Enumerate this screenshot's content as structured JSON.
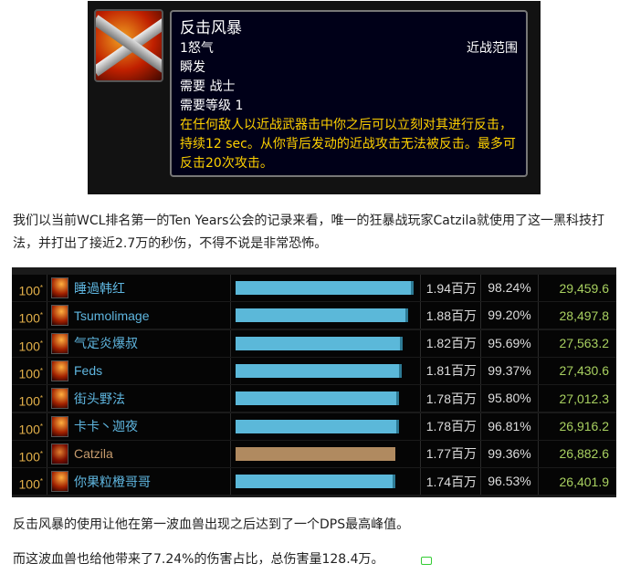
{
  "tooltip": {
    "name": "反击风暴",
    "cost": "1怒气",
    "range": "近战范围",
    "cast": "瞬发",
    "requires_class": "需要 战士",
    "requires_level": "需要等级 1",
    "description": "在任何敌人以近战武器击中你之后可以立刻对其进行反击，持续12 sec。从你背后发动的近战攻击无法被反击。最多可反击20次攻击。",
    "icon": "crossed-swords-icon"
  },
  "paragraph1": "我们以当前WCL排名第一的Ten Years公会的记录来看，唯一的狂暴战玩家Catzila就使用了这一黑科技打法，并打出了接近2.7万的秒伤，不得不说是非常恐怖。",
  "table": {
    "rows": [
      {
        "rank": "100",
        "name": "睡過韩红",
        "amount": "1.94百万",
        "pct": "98.24%",
        "dps": "29,459.6",
        "fill": 1.94,
        "class": "mage"
      },
      {
        "rank": "100",
        "name": "Tsumolimage",
        "amount": "1.88百万",
        "pct": "99.20%",
        "dps": "28,497.8",
        "fill": 1.88,
        "class": "mage"
      },
      {
        "rank": "100",
        "name": "气定炎爆叔",
        "amount": "1.82百万",
        "pct": "95.69%",
        "dps": "27,563.2",
        "fill": 1.82,
        "class": "mage"
      },
      {
        "rank": "100",
        "name": "Feds",
        "amount": "1.81百万",
        "pct": "99.37%",
        "dps": "27,430.6",
        "fill": 1.81,
        "class": "mage"
      },
      {
        "rank": "100",
        "name": "街头野法",
        "amount": "1.78百万",
        "pct": "95.80%",
        "dps": "27,012.3",
        "fill": 1.78,
        "class": "mage"
      },
      {
        "rank": "100",
        "name": "卡卡丶迦夜",
        "amount": "1.78百万",
        "pct": "96.81%",
        "dps": "26,916.2",
        "fill": 1.78,
        "class": "mage"
      },
      {
        "rank": "100",
        "name": "Catzila",
        "amount": "1.77百万",
        "pct": "99.36%",
        "dps": "26,882.6",
        "fill": 1.77,
        "class": "warrior"
      },
      {
        "rank": "100",
        "name": "你果粒橙哥哥",
        "amount": "1.74百万",
        "pct": "96.53%",
        "dps": "26,401.9",
        "fill": 1.74,
        "class": "mage"
      }
    ],
    "rank_mark": "*",
    "colors": {
      "mage": "#5bb8d9",
      "warrior": "#b08a60",
      "dps": "#a8d060"
    }
  },
  "paragraph2": "反击风暴的使用让他在第一波血兽出现之后达到了一个DPS最高峰值。",
  "paragraph3": "而这波血兽也给他带来了7.24%的伤害占比，总伤害量128.4万。"
}
